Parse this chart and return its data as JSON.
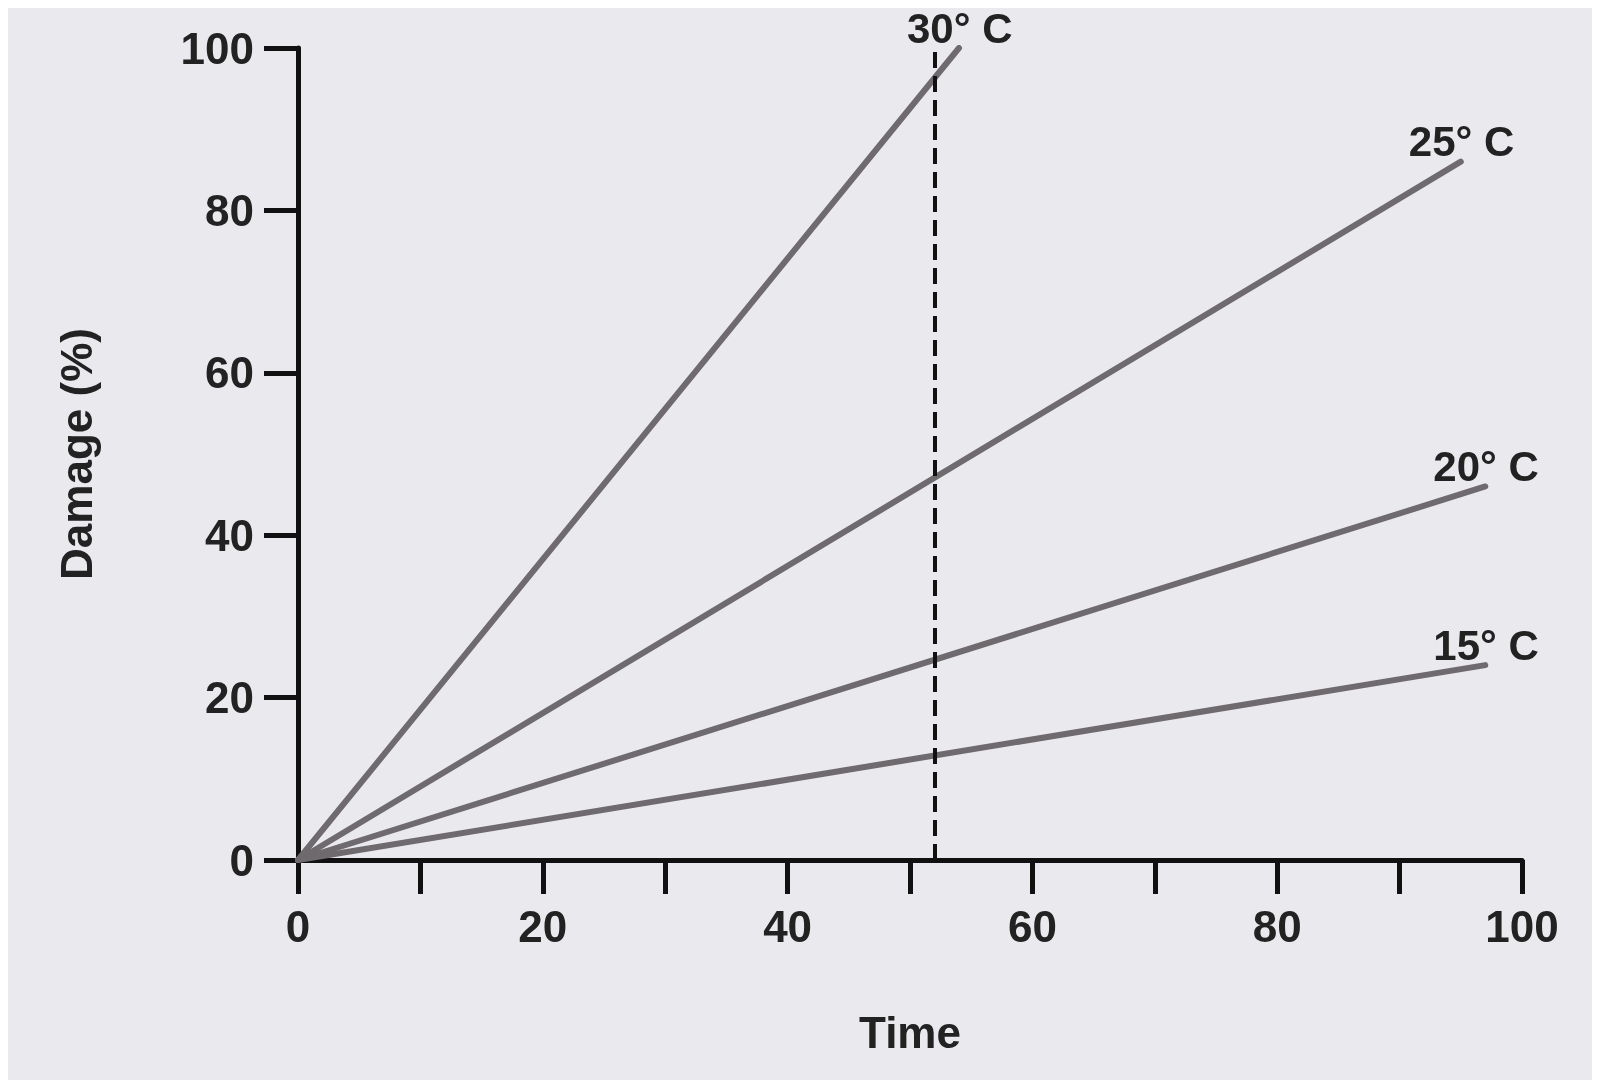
{
  "chart_data": {
    "type": "line",
    "xlabel": "Time",
    "ylabel": "Damage (%)",
    "xlim": [
      0,
      100
    ],
    "ylim": [
      0,
      100
    ],
    "xticks": [
      0,
      20,
      40,
      60,
      80,
      100
    ],
    "yticks": [
      0,
      20,
      40,
      60,
      80,
      100
    ],
    "grid": false,
    "marker": "none",
    "line_style": "solid",
    "series": [
      {
        "name": "30° C",
        "color": "#6e6a6e",
        "x": [
          0,
          54
        ],
        "values": [
          0,
          100
        ]
      },
      {
        "name": "25° C",
        "color": "#6e6a6e",
        "x": [
          0,
          95
        ],
        "values": [
          0,
          86
        ]
      },
      {
        "name": "20° C",
        "color": "#6e6a6e",
        "x": [
          0,
          97
        ],
        "values": [
          0,
          46
        ]
      },
      {
        "name": "15° C",
        "color": "#6e6a6e",
        "x": [
          0,
          97
        ],
        "values": [
          0,
          24
        ]
      }
    ],
    "ref_lines": [
      {
        "axis": "x",
        "value": 52,
        "label": null,
        "color": "#111111",
        "line_style": "dashed"
      }
    ]
  }
}
